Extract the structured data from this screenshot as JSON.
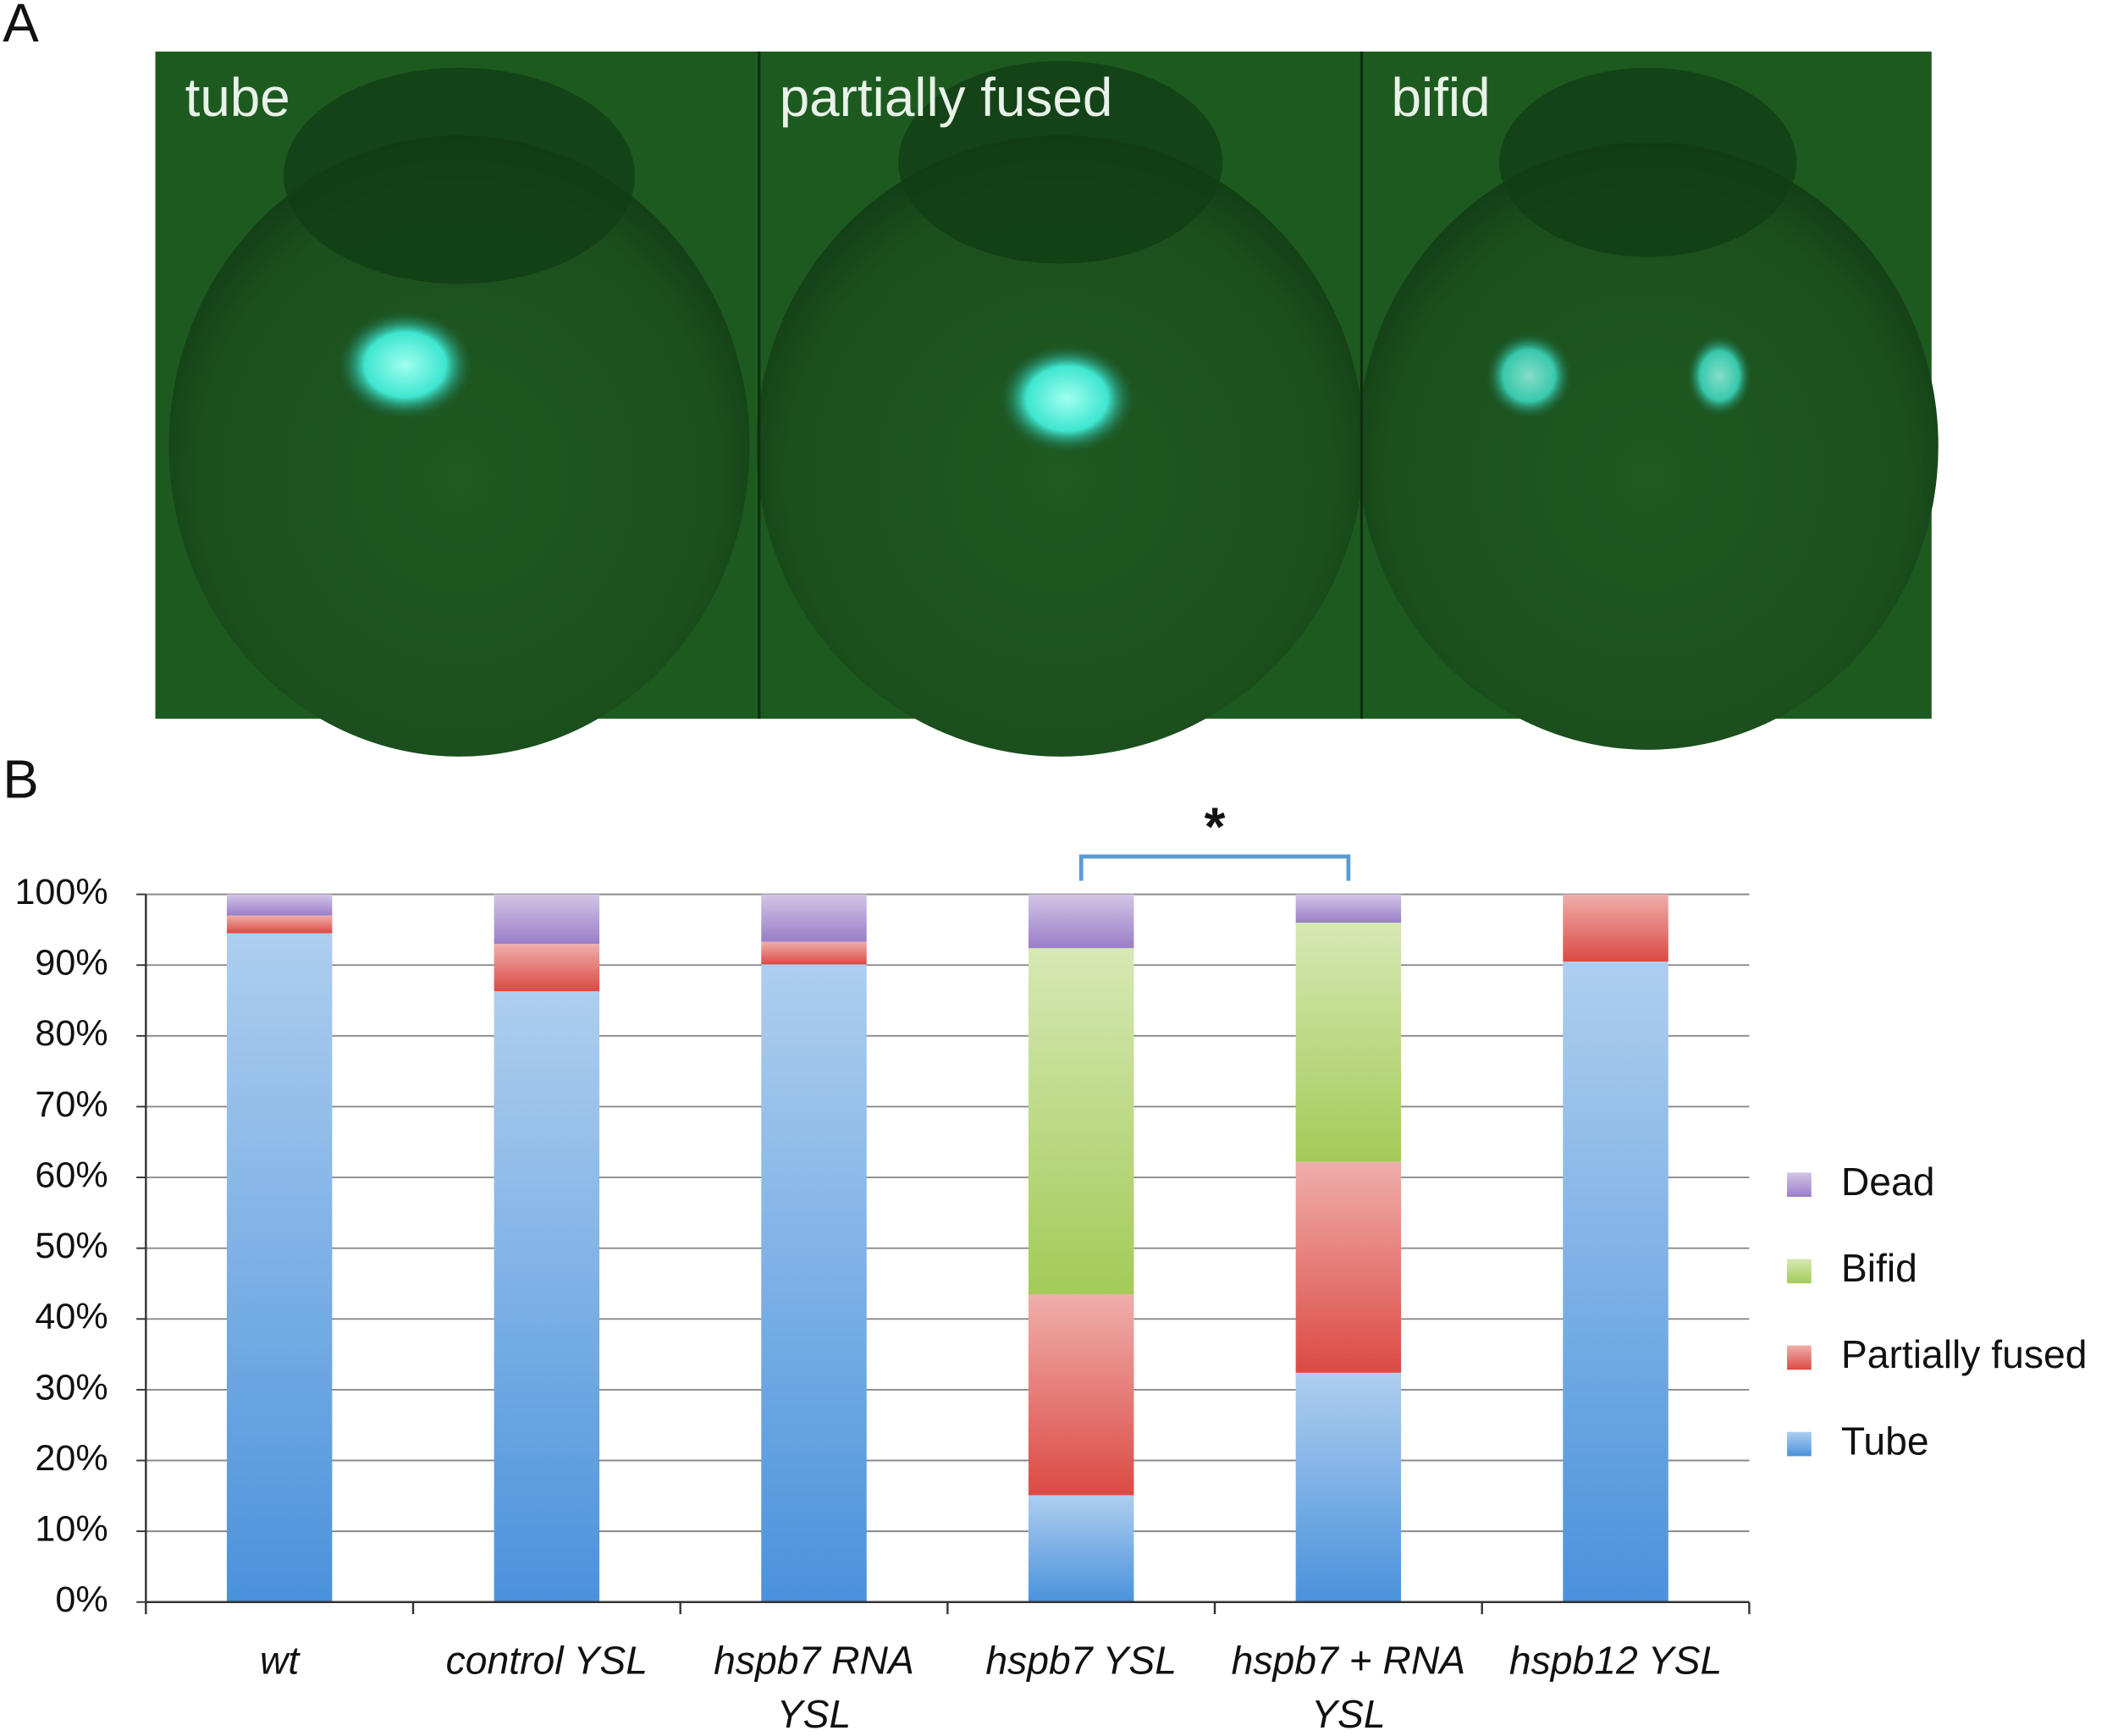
{
  "panel_a": {
    "letter": "A",
    "labels": [
      "tube",
      "partially fused",
      "bifid"
    ]
  },
  "chart_data": {
    "type": "stacked_bar",
    "letter": "B",
    "categories": [
      "wt",
      "control YSL",
      "hspb7 RNA YSL",
      "hspb7 YSL",
      "hspb7 + RNA YSL",
      "hspb12 YSL"
    ],
    "series": [
      {
        "name": "Tube",
        "color": "#4a92dc",
        "values": [
          94.5,
          86.3,
          90.1,
          15.1,
          32.4,
          90.5
        ]
      },
      {
        "name": "Partially fused",
        "color": "#dc4a44",
        "values": [
          2.5,
          6.7,
          3.2,
          28.4,
          29.8,
          9.5
        ]
      },
      {
        "name": "Bifid",
        "color": "#a3cb58",
        "values": [
          0,
          0,
          0,
          48.9,
          33.8,
          0
        ]
      },
      {
        "name": "Dead",
        "color": "#9a7ec8",
        "values": [
          3,
          7,
          6.7,
          7.6,
          4,
          0
        ]
      }
    ],
    "ylim": [
      0,
      100
    ],
    "yticks": [
      {
        "value": 0,
        "label": "0%"
      },
      {
        "value": 10,
        "label": "10%"
      },
      {
        "value": 20,
        "label": "20%"
      },
      {
        "value": 30,
        "label": "30%"
      },
      {
        "value": 40,
        "label": "40%"
      },
      {
        "value": 50,
        "label": "50%"
      },
      {
        "value": 60,
        "label": "60%"
      },
      {
        "value": 70,
        "label": "70%"
      },
      {
        "value": 80,
        "label": "80%"
      },
      {
        "value": 90,
        "label": "90%"
      },
      {
        "value": 100,
        "label": "100%"
      }
    ],
    "grid": true,
    "legend": "right",
    "annotation": "*"
  }
}
